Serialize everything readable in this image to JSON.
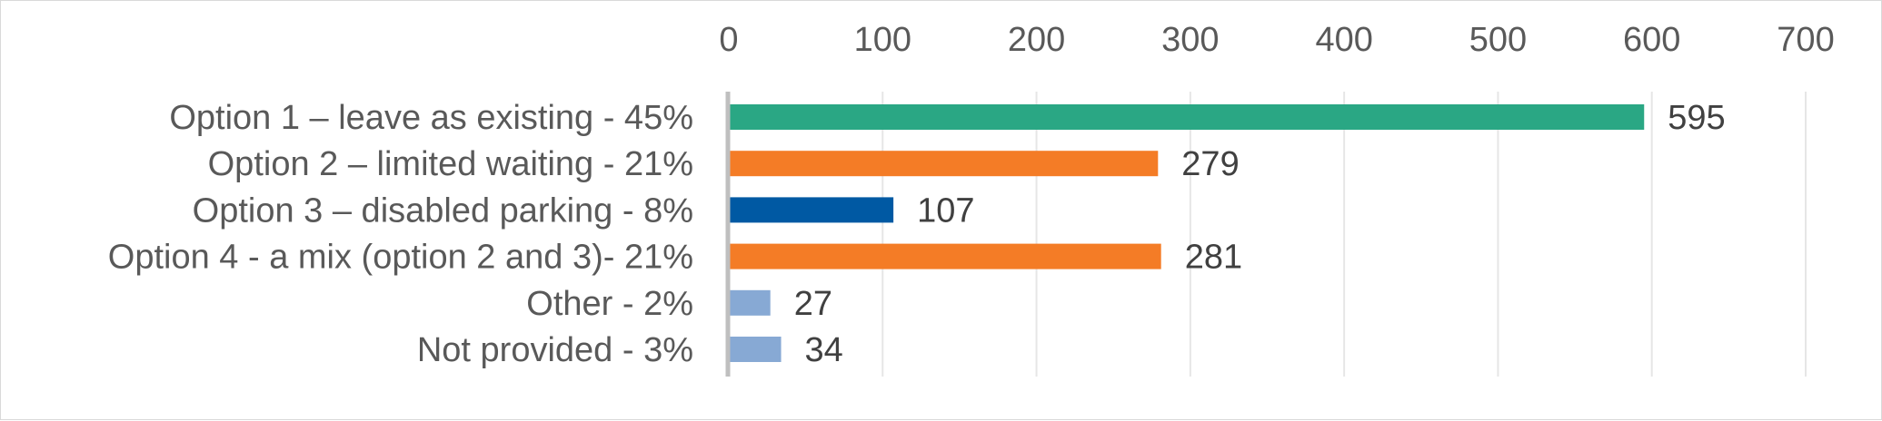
{
  "chart_data": {
    "type": "bar",
    "orientation": "horizontal",
    "title": "",
    "xlabel": "",
    "ylabel": "",
    "xlim": [
      0,
      700
    ],
    "x_ticks": [
      0,
      100,
      200,
      300,
      400,
      500,
      600,
      700
    ],
    "x_axis_position": "top",
    "grid": true,
    "legend": "none",
    "categories": [
      "Option 1 – leave as existing - 45%",
      "Option 2 – limited waiting - 21%",
      "Option 3 – disabled parking - 8%",
      "Option 4 - a mix (option 2 and 3)- 21%",
      "Other - 2%",
      "Not provided - 3%"
    ],
    "values": [
      595,
      279,
      107,
      281,
      27,
      34
    ],
    "colors": [
      "#2aa784",
      "#f47c26",
      "#0059a3",
      "#f47c26",
      "#87a9d4",
      "#87a9d4"
    ]
  }
}
